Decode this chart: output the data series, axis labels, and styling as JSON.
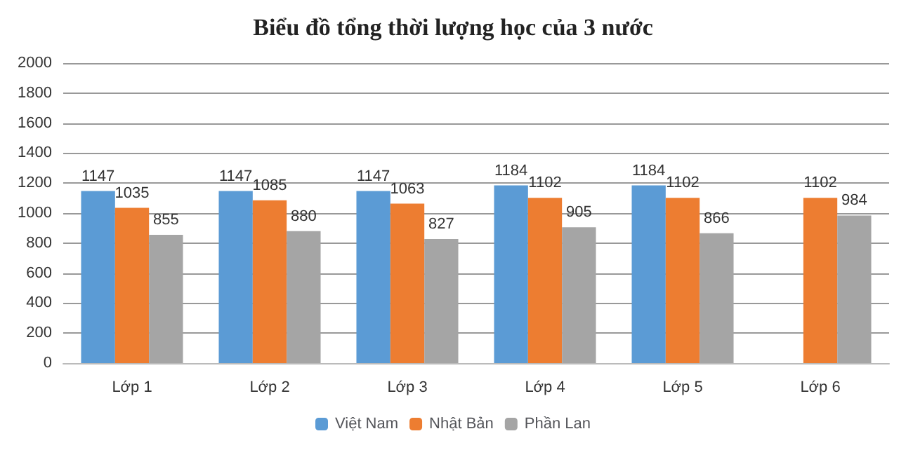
{
  "chart_data": {
    "type": "bar",
    "title": "Biểu đồ tổng thời lượng học của 3 nước",
    "categories": [
      "Lớp 1",
      "Lớp 2",
      "Lớp 3",
      "Lớp 4",
      "Lớp 5",
      "Lớp 6"
    ],
    "series": [
      {
        "name": "Việt Nam",
        "color": "#5b9bd5",
        "values": [
          1147,
          1147,
          1147,
          1184,
          1184,
          null
        ]
      },
      {
        "name": "Nhật Bản",
        "color": "#ed7d31",
        "values": [
          1035,
          1085,
          1063,
          1102,
          1102,
          1102
        ]
      },
      {
        "name": "Phần Lan",
        "color": "#a5a5a5",
        "values": [
          855,
          880,
          827,
          905,
          866,
          984
        ]
      }
    ],
    "ylim": [
      0,
      2000
    ],
    "yticks": [
      0,
      200,
      400,
      600,
      800,
      1000,
      1200,
      1400,
      1600,
      1800,
      2000
    ],
    "grid": "y",
    "legend": "bottom",
    "data_labels": true
  }
}
